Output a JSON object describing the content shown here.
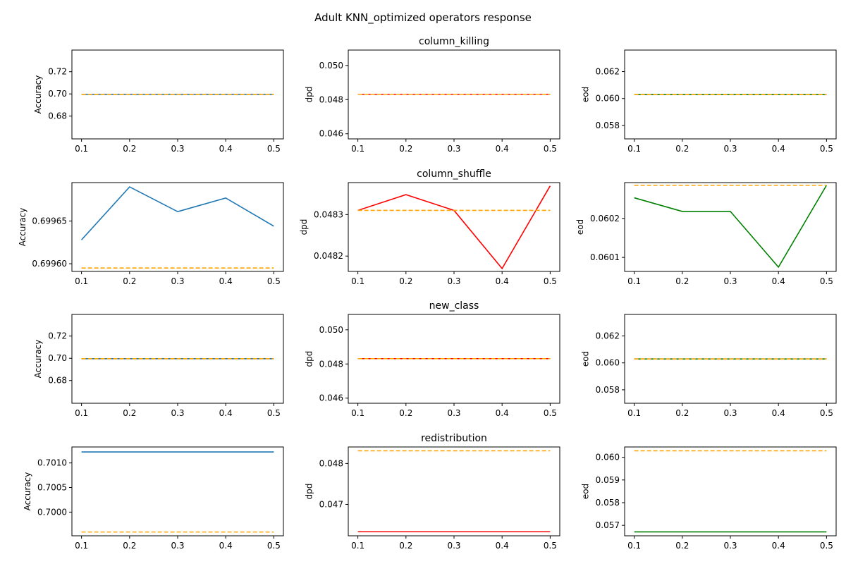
{
  "figure": {
    "title": "Adult KNN_optimized operators response"
  },
  "colors": {
    "accuracy": "#1f77b4",
    "dpd": "#ff0000",
    "eod": "#008000",
    "baseline": "#ffa500"
  },
  "chart_data": [
    {
      "type": "line",
      "row": 0,
      "col": 0,
      "title": "",
      "ylabel": "Accuracy",
      "x": [
        0.1,
        0.2,
        0.3,
        0.4,
        0.5
      ],
      "xticks": [
        "0.1",
        "0.2",
        "0.3",
        "0.4",
        "0.5"
      ],
      "ylim": [
        0.6595,
        0.7395
      ],
      "yticks": [
        "0.68",
        "0.70",
        "0.72"
      ],
      "ytick_values": [
        0.68,
        0.7,
        0.72
      ],
      "series": [
        {
          "style": "solid",
          "color": "accuracy",
          "values": [
            0.69959,
            0.69959,
            0.69959,
            0.69959,
            0.69959
          ]
        },
        {
          "style": "dashed",
          "color": "baseline",
          "values": [
            0.69959,
            0.69959,
            0.69959,
            0.69959,
            0.69959
          ]
        }
      ]
    },
    {
      "type": "line",
      "row": 0,
      "col": 1,
      "title": "column_killing",
      "ylabel": "dpd",
      "x": [
        0.1,
        0.2,
        0.3,
        0.4,
        0.5
      ],
      "xticks": [
        "0.1",
        "0.2",
        "0.3",
        "0.4",
        "0.5"
      ],
      "ylim": [
        0.0457,
        0.0509
      ],
      "yticks": [
        "0.046",
        "0.048",
        "0.050"
      ],
      "ytick_values": [
        0.046,
        0.048,
        0.05
      ],
      "series": [
        {
          "style": "solid",
          "color": "dpd",
          "values": [
            0.04831,
            0.04831,
            0.04831,
            0.04831,
            0.04831
          ]
        },
        {
          "style": "dashed",
          "color": "baseline",
          "values": [
            0.04831,
            0.04831,
            0.04831,
            0.04831,
            0.04831
          ]
        }
      ]
    },
    {
      "type": "line",
      "row": 0,
      "col": 2,
      "title": "",
      "ylabel": "eod",
      "x": [
        0.1,
        0.2,
        0.3,
        0.4,
        0.5
      ],
      "xticks": [
        "0.1",
        "0.2",
        "0.3",
        "0.4",
        "0.5"
      ],
      "ylim": [
        0.057,
        0.0636
      ],
      "yticks": [
        "0.058",
        "0.060",
        "0.062"
      ],
      "ytick_values": [
        0.058,
        0.06,
        0.062
      ],
      "series": [
        {
          "style": "solid",
          "color": "eod",
          "values": [
            0.06029,
            0.06029,
            0.06029,
            0.06029,
            0.06029
          ]
        },
        {
          "style": "dashed",
          "color": "baseline",
          "values": [
            0.06029,
            0.06029,
            0.06029,
            0.06029,
            0.06029
          ]
        }
      ]
    },
    {
      "type": "line",
      "row": 1,
      "col": 0,
      "title": "",
      "ylabel": "Accuracy",
      "x": [
        0.1,
        0.2,
        0.3,
        0.4,
        0.5
      ],
      "xticks": [
        "0.1",
        "0.2",
        "0.3",
        "0.4",
        "0.5"
      ],
      "ylim": [
        0.699591,
        0.699695
      ],
      "yticks": [
        "0.69960",
        "0.69965"
      ],
      "ytick_values": [
        0.6996,
        0.69965
      ],
      "series": [
        {
          "style": "solid",
          "color": "accuracy",
          "values": [
            0.699628,
            0.69969,
            0.699661,
            0.699677,
            0.699644
          ]
        },
        {
          "style": "dashed",
          "color": "baseline",
          "values": [
            0.699595,
            0.699595,
            0.699595,
            0.699595,
            0.699595
          ]
        }
      ]
    },
    {
      "type": "line",
      "row": 1,
      "col": 1,
      "title": "column_shuffle",
      "ylabel": "dpd",
      "x": [
        0.1,
        0.2,
        0.3,
        0.4,
        0.5
      ],
      "xticks": [
        "0.1",
        "0.2",
        "0.3",
        "0.4",
        "0.5"
      ],
      "ylim": [
        0.048163,
        0.048377
      ],
      "yticks": [
        "0.0482",
        "0.0483"
      ],
      "ytick_values": [
        0.0482,
        0.0483
      ],
      "series": [
        {
          "style": "solid",
          "color": "dpd",
          "values": [
            0.04831,
            0.048348,
            0.04831,
            0.04817,
            0.048369
          ]
        },
        {
          "style": "dashed",
          "color": "baseline",
          "values": [
            0.04831,
            0.04831,
            0.04831,
            0.04831,
            0.04831
          ]
        }
      ]
    },
    {
      "type": "line",
      "row": 1,
      "col": 2,
      "title": "",
      "ylabel": "eod",
      "x": [
        0.1,
        0.2,
        0.3,
        0.4,
        0.5
      ],
      "xticks": [
        "0.1",
        "0.2",
        "0.3",
        "0.4",
        "0.5"
      ],
      "ylim": [
        0.060064,
        0.060292
      ],
      "yticks": [
        "0.0601",
        "0.0602"
      ],
      "ytick_values": [
        0.0601,
        0.0602
      ],
      "series": [
        {
          "style": "solid",
          "color": "eod",
          "values": [
            0.060253,
            0.060218,
            0.060218,
            0.060075,
            0.060285
          ]
        },
        {
          "style": "dashed",
          "color": "baseline",
          "values": [
            0.060285,
            0.060285,
            0.060285,
            0.060285,
            0.060285
          ]
        }
      ]
    },
    {
      "type": "line",
      "row": 2,
      "col": 0,
      "title": "",
      "ylabel": "Accuracy",
      "x": [
        0.1,
        0.2,
        0.3,
        0.4,
        0.5
      ],
      "xticks": [
        "0.1",
        "0.2",
        "0.3",
        "0.4",
        "0.5"
      ],
      "ylim": [
        0.6595,
        0.7395
      ],
      "yticks": [
        "0.68",
        "0.70",
        "0.72"
      ],
      "ytick_values": [
        0.68,
        0.7,
        0.72
      ],
      "series": [
        {
          "style": "solid",
          "color": "accuracy",
          "values": [
            0.69959,
            0.69959,
            0.69959,
            0.69959,
            0.69959
          ]
        },
        {
          "style": "dashed",
          "color": "baseline",
          "values": [
            0.69959,
            0.69959,
            0.69959,
            0.69959,
            0.69959
          ]
        }
      ]
    },
    {
      "type": "line",
      "row": 2,
      "col": 1,
      "title": "new_class",
      "ylabel": "dpd",
      "x": [
        0.1,
        0.2,
        0.3,
        0.4,
        0.5
      ],
      "xticks": [
        "0.1",
        "0.2",
        "0.3",
        "0.4",
        "0.5"
      ],
      "ylim": [
        0.0457,
        0.0509
      ],
      "yticks": [
        "0.046",
        "0.048",
        "0.050"
      ],
      "ytick_values": [
        0.046,
        0.048,
        0.05
      ],
      "series": [
        {
          "style": "solid",
          "color": "dpd",
          "values": [
            0.04831,
            0.04831,
            0.04831,
            0.04831,
            0.04831
          ]
        },
        {
          "style": "dashed",
          "color": "baseline",
          "values": [
            0.04831,
            0.04831,
            0.04831,
            0.04831,
            0.04831
          ]
        }
      ]
    },
    {
      "type": "line",
      "row": 2,
      "col": 2,
      "title": "",
      "ylabel": "eod",
      "x": [
        0.1,
        0.2,
        0.3,
        0.4,
        0.5
      ],
      "xticks": [
        "0.1",
        "0.2",
        "0.3",
        "0.4",
        "0.5"
      ],
      "ylim": [
        0.057,
        0.0636
      ],
      "yticks": [
        "0.058",
        "0.060",
        "0.062"
      ],
      "ytick_values": [
        0.058,
        0.06,
        0.062
      ],
      "series": [
        {
          "style": "solid",
          "color": "eod",
          "values": [
            0.06029,
            0.06029,
            0.06029,
            0.06029,
            0.06029
          ]
        },
        {
          "style": "dashed",
          "color": "baseline",
          "values": [
            0.06029,
            0.06029,
            0.06029,
            0.06029,
            0.06029
          ]
        }
      ]
    },
    {
      "type": "line",
      "row": 3,
      "col": 0,
      "title": "",
      "ylabel": "Accuracy",
      "x": [
        0.1,
        0.2,
        0.3,
        0.4,
        0.5
      ],
      "xticks": [
        "0.1",
        "0.2",
        "0.3",
        "0.4",
        "0.5"
      ],
      "ylim": [
        0.699518,
        0.701325
      ],
      "yticks": [
        "0.7000",
        "0.7005",
        "0.7010"
      ],
      "ytick_values": [
        0.7,
        0.7005,
        0.701
      ],
      "series": [
        {
          "style": "solid",
          "color": "accuracy",
          "values": [
            0.701223,
            0.701223,
            0.701223,
            0.701223,
            0.701223
          ]
        },
        {
          "style": "dashed",
          "color": "baseline",
          "values": [
            0.699595,
            0.699595,
            0.699595,
            0.699595,
            0.699595
          ]
        }
      ]
    },
    {
      "type": "line",
      "row": 3,
      "col": 1,
      "title": "redistribution",
      "ylabel": "dpd",
      "x": [
        0.1,
        0.2,
        0.3,
        0.4,
        0.5
      ],
      "xticks": [
        "0.1",
        "0.2",
        "0.3",
        "0.4",
        "0.5"
      ],
      "ylim": [
        0.046233,
        0.048403
      ],
      "yticks": [
        "0.047",
        "0.048"
      ],
      "ytick_values": [
        0.047,
        0.048
      ],
      "series": [
        {
          "style": "solid",
          "color": "dpd",
          "values": [
            0.046332,
            0.046332,
            0.046332,
            0.046332,
            0.046332
          ]
        },
        {
          "style": "dashed",
          "color": "baseline",
          "values": [
            0.04831,
            0.04831,
            0.04831,
            0.04831,
            0.04831
          ]
        }
      ]
    },
    {
      "type": "line",
      "row": 3,
      "col": 2,
      "title": "",
      "ylabel": "eod",
      "x": [
        0.1,
        0.2,
        0.3,
        0.4,
        0.5
      ],
      "xticks": [
        "0.1",
        "0.2",
        "0.3",
        "0.4",
        "0.5"
      ],
      "ylim": [
        0.056539,
        0.060455
      ],
      "yticks": [
        "0.057",
        "0.058",
        "0.059",
        "0.060"
      ],
      "ytick_values": [
        0.057,
        0.058,
        0.059,
        0.06
      ],
      "series": [
        {
          "style": "solid",
          "color": "eod",
          "values": [
            0.056712,
            0.056712,
            0.056712,
            0.056712,
            0.056712
          ]
        },
        {
          "style": "dashed",
          "color": "baseline",
          "values": [
            0.060285,
            0.060285,
            0.060285,
            0.060285,
            0.060285
          ]
        }
      ]
    }
  ]
}
